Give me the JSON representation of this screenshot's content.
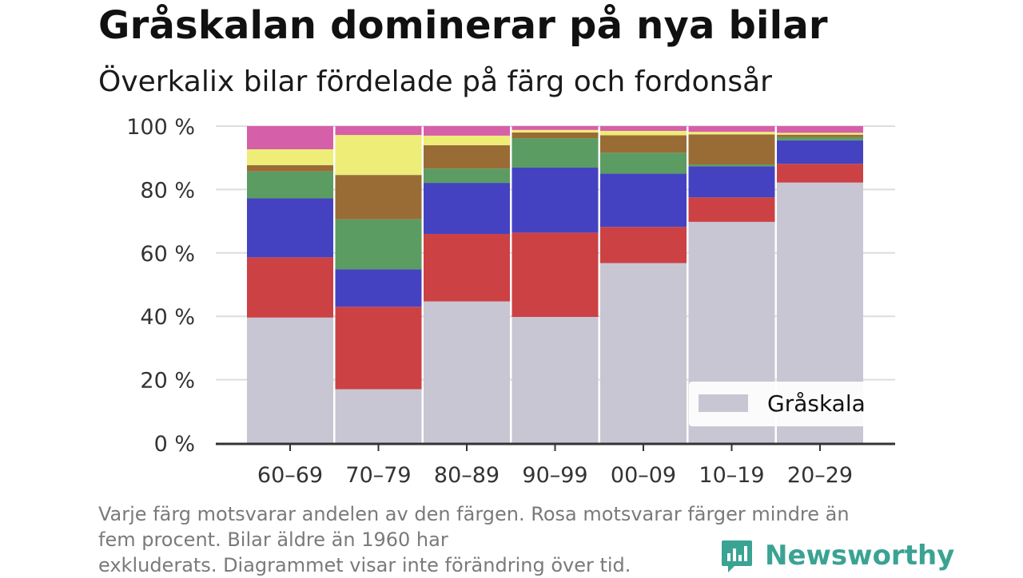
{
  "title": "Gråskalan dominerar på nya bilar",
  "subtitle": "Överkalix bilar fördelade på färg och fordonsår",
  "note": {
    "line1": "Varje färg motsvarar andelen av den färgen. Rosa motsvarar färger mindre än",
    "line2": "fem procent. Bilar äldre än 1960 har",
    "line3": "exkluderats. Diagrammet visar inte förändring över tid."
  },
  "brand": {
    "name": "Newsworthy",
    "icon": "newsworthy-logo-icon",
    "color": "#3aa393"
  },
  "chart_data": {
    "type": "bar",
    "stacked": true,
    "categories": [
      "60–69",
      "70–79",
      "80–89",
      "90–99",
      "00–09",
      "10–19",
      "20–29"
    ],
    "ylim": [
      0,
      100
    ],
    "yticks": [
      0,
      20,
      40,
      60,
      80,
      100
    ],
    "ytick_labels": [
      "0 %",
      "20 %",
      "40 %",
      "60 %",
      "80 %",
      "100 %"
    ],
    "grid": true,
    "legend": {
      "placement": "bottom-right",
      "entries": [
        "Gråskala"
      ]
    },
    "series": [
      {
        "name": "Gråskala",
        "color": "#c8c6d2",
        "values": [
          39.6,
          17.0,
          44.7,
          39.8,
          56.8,
          69.8,
          82.2
        ]
      },
      {
        "color": "#cc4143",
        "values": [
          19.0,
          26.0,
          21.3,
          26.6,
          11.4,
          7.7,
          5.9
        ]
      },
      {
        "color": "#4542c1",
        "values": [
          18.6,
          11.8,
          16.1,
          20.5,
          16.8,
          9.8,
          7.4
        ]
      },
      {
        "color": "#5b9c62",
        "values": [
          8.5,
          15.8,
          4.5,
          9.3,
          6.6,
          0.6,
          1.0
        ]
      },
      {
        "color": "#9a6c35",
        "values": [
          2.0,
          14.0,
          7.4,
          1.8,
          5.5,
          9.5,
          0.8
        ]
      },
      {
        "color": "#eded78",
        "values": [
          5.0,
          12.6,
          3.0,
          0.8,
          1.4,
          0.8,
          0.6
        ]
      },
      {
        "color": "#d65fa9",
        "values": [
          7.3,
          2.8,
          3.0,
          1.2,
          1.5,
          1.8,
          2.1
        ]
      }
    ]
  }
}
